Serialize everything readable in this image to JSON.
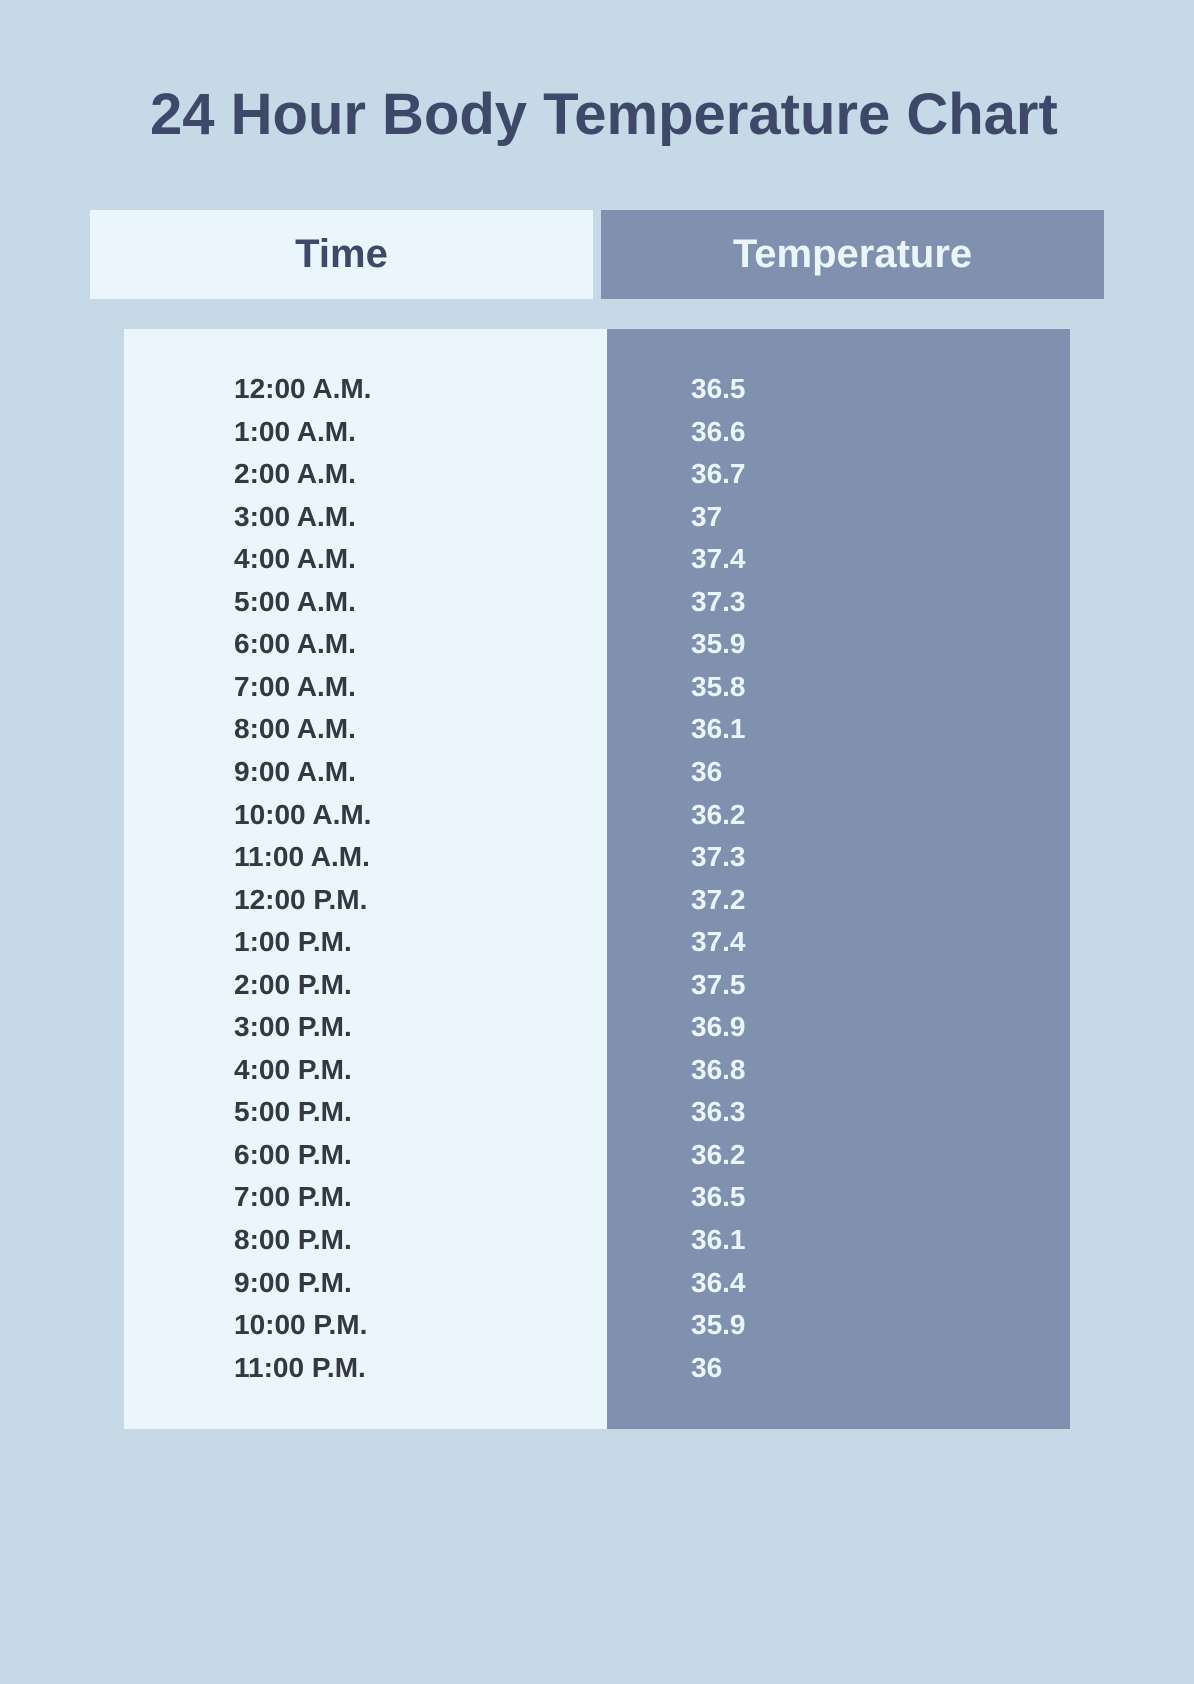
{
  "title": "24 Hour Body Temperature Chart",
  "styling": {
    "background_color": "#c5dae6",
    "title_color": "#3e4868",
    "title_fontsize": 58,
    "title_fontweight": 800,
    "header_fontsize": 40,
    "header_fontweight": 700,
    "cell_fontsize": 28,
    "cell_fontweight": 700,
    "time_header_bg": "#eaf5fc",
    "time_header_text": "#3e4868",
    "temp_header_bg": "#8091b0",
    "temp_header_text": "#eaf5fc",
    "time_body_bg": "#eaf5fc",
    "time_body_text": "#34393f",
    "temp_body_bg": "#8091b0",
    "temp_body_text": "#eaf5fc"
  },
  "table": {
    "type": "table",
    "columns": [
      "Time",
      "Temperature"
    ],
    "rows": [
      [
        "12:00 A.M.",
        "36.5"
      ],
      [
        "1:00 A.M.",
        "36.6"
      ],
      [
        "2:00 A.M.",
        "36.7"
      ],
      [
        "3:00 A.M.",
        "37"
      ],
      [
        "4:00 A.M.",
        "37.4"
      ],
      [
        "5:00 A.M.",
        "37.3"
      ],
      [
        "6:00 A.M.",
        "35.9"
      ],
      [
        "7:00 A.M.",
        "35.8"
      ],
      [
        "8:00 A.M.",
        "36.1"
      ],
      [
        "9:00 A.M.",
        "36"
      ],
      [
        "10:00 A.M.",
        "36.2"
      ],
      [
        "11:00 A.M.",
        "37.3"
      ],
      [
        "12:00 P.M.",
        "37.2"
      ],
      [
        "1:00 P.M.",
        "37.4"
      ],
      [
        "2:00 P.M.",
        "37.5"
      ],
      [
        "3:00 P.M.",
        "36.9"
      ],
      [
        "4:00 P.M.",
        "36.8"
      ],
      [
        "5:00 P.M.",
        "36.3"
      ],
      [
        "6:00 P.M.",
        "36.2"
      ],
      [
        "7:00 P.M.",
        "36.5"
      ],
      [
        "8:00 P.M.",
        "36.1"
      ],
      [
        "9:00 P.M.",
        "36.4"
      ],
      [
        "10:00 P.M.",
        "35.9"
      ],
      [
        "11:00 P.M.",
        "36"
      ]
    ]
  }
}
